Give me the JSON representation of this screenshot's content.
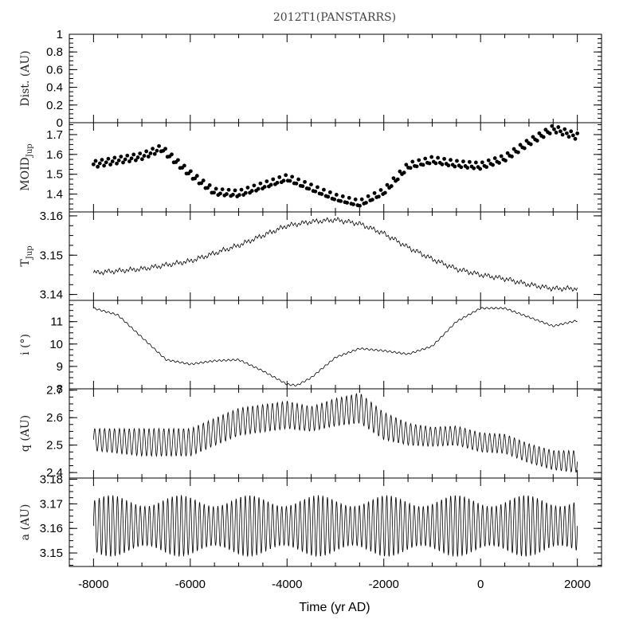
{
  "chart_data": {
    "type": "line",
    "title": "2012T1(PANSTARRS)",
    "xlabel": "Time (yr AD)",
    "xlim": [
      -8500,
      2500
    ],
    "xticks": [
      -8000,
      -6000,
      -4000,
      -2000,
      0,
      2000
    ],
    "xtick_labels": [
      "-8000",
      "-6000",
      "-4000",
      "-2000",
      "0",
      "2000"
    ],
    "panels": [
      {
        "id": "dist",
        "ylabel": "Dist. (AU)",
        "ylim": [
          0,
          1
        ],
        "yticks": [
          "1",
          "0.8",
          "0.6",
          "0.4",
          "0.2",
          "0"
        ],
        "ytick_values": [
          1,
          0.8,
          0.6,
          0.4,
          0.2,
          0
        ],
        "series_type": "none",
        "x": [],
        "y": []
      },
      {
        "id": "moid",
        "ylabel": "MOID",
        "ylabel_sub": "Jup",
        "ylim": [
          1.31,
          1.76
        ],
        "yticks": [
          "1.7",
          "1.6",
          "1.5",
          "1.4"
        ],
        "ytick_values": [
          1.7,
          1.6,
          1.5,
          1.4
        ],
        "series_type": "scatter",
        "x": [
          -8000,
          -7000,
          -6600,
          -6000,
          -5500,
          -5000,
          -4000,
          -3500,
          -3000,
          -2500,
          -2000,
          -1500,
          -1000,
          -500,
          0,
          500,
          1000,
          1500,
          2000
        ],
        "y": [
          1.55,
          1.59,
          1.63,
          1.5,
          1.41,
          1.4,
          1.48,
          1.43,
          1.38,
          1.35,
          1.41,
          1.54,
          1.57,
          1.55,
          1.54,
          1.58,
          1.66,
          1.73,
          1.69
        ]
      },
      {
        "id": "tjup",
        "ylabel": "T",
        "ylabel_sub": "Jup",
        "ylim": [
          3.1385,
          3.161
        ],
        "yticks": [
          "3.16",
          "3.15",
          "3.14"
        ],
        "ytick_values": [
          3.16,
          3.15,
          3.14
        ],
        "series_type": "line",
        "x": [
          -8000,
          -7000,
          -6000,
          -5000,
          -4500,
          -4000,
          -3500,
          -3000,
          -2500,
          -2000,
          -1500,
          -1000,
          -500,
          0,
          500,
          1000,
          1500,
          2000
        ],
        "y": [
          3.1455,
          3.1465,
          3.1485,
          3.1525,
          3.155,
          3.1575,
          3.1585,
          3.159,
          3.158,
          3.1555,
          3.152,
          3.149,
          3.1465,
          3.145,
          3.144,
          3.1425,
          3.1415,
          3.1415
        ]
      },
      {
        "id": "incl",
        "ylabel": "i (°)",
        "ylim": [
          8,
          11.95
        ],
        "yticks": [
          "11",
          "10",
          "9",
          "8"
        ],
        "ytick_values": [
          11,
          10,
          9,
          8
        ],
        "series_type": "line",
        "x": [
          -8000,
          -7500,
          -7000,
          -6500,
          -6000,
          -5500,
          -5000,
          -4500,
          -4000,
          -3800,
          -3500,
          -3000,
          -2500,
          -2000,
          -1500,
          -1000,
          -500,
          0,
          500,
          1000,
          1500,
          2000
        ],
        "y": [
          11.6,
          11.3,
          10.3,
          9.3,
          9.1,
          9.25,
          9.3,
          8.8,
          8.2,
          8.15,
          8.5,
          9.4,
          9.8,
          9.7,
          9.55,
          9.9,
          11.0,
          11.6,
          11.6,
          11.2,
          10.8,
          11.05
        ]
      },
      {
        "id": "q",
        "ylabel": "q (AU)",
        "ylim": [
          2.38,
          2.705
        ],
        "yticks": [
          "2.7",
          "2.6",
          "2.5",
          "2.4"
        ],
        "ytick_values": [
          2.7,
          2.6,
          2.5,
          2.4
        ],
        "series_type": "line",
        "x": [
          -8000,
          -7000,
          -6000,
          -5000,
          -4000,
          -3500,
          -3000,
          -2500,
          -2000,
          -1500,
          -1000,
          -500,
          0,
          500,
          1000,
          1500,
          2000
        ],
        "y": [
          2.52,
          2.51,
          2.51,
          2.585,
          2.61,
          2.595,
          2.62,
          2.635,
          2.57,
          2.54,
          2.53,
          2.535,
          2.51,
          2.505,
          2.47,
          2.445,
          2.44
        ],
        "amplitude": [
          0.04,
          0.05,
          0.05,
          0.05,
          0.05,
          0.045,
          0.05,
          0.055,
          0.05,
          0.04,
          0.035,
          0.035,
          0.035,
          0.035,
          0.035,
          0.035,
          0.04
        ]
      },
      {
        "id": "a",
        "ylabel": "a (AU)",
        "ylim": [
          3.1445,
          3.1805
        ],
        "yticks": [
          "3.18",
          "3.17",
          "3.16",
          "3.15"
        ],
        "ytick_values": [
          3.18,
          3.17,
          3.16,
          3.15
        ],
        "series_type": "line",
        "x": [
          -8000,
          2000
        ],
        "y": [
          3.161,
          3.161
        ],
        "amplitude": [
          0.0125,
          0.0125
        ]
      }
    ]
  }
}
